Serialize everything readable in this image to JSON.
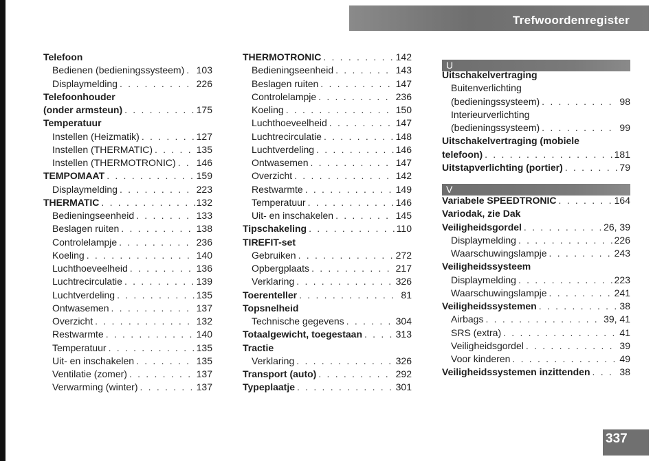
{
  "header": {
    "title": "Trefwoordenregister"
  },
  "page_number": "337",
  "columns": [
    {
      "entries": [
        {
          "text": "Telefoon",
          "bold": true
        },
        {
          "text": "Bedienen (bedieningssysteem)",
          "page": "103",
          "indent": true
        },
        {
          "text": "Displaymelding",
          "page": "226",
          "indent": true
        },
        {
          "text": "Telefoonhouder",
          "bold": true
        },
        {
          "text": "(onder armsteun)",
          "page": "175",
          "bold": true
        },
        {
          "text": "Temperatuur",
          "bold": true
        },
        {
          "text": "Instellen (Heizmatik)",
          "page": "127",
          "indent": true
        },
        {
          "text": "Instellen (THERMATIC)",
          "page": "135",
          "indent": true
        },
        {
          "text": "Instellen (THERMOTRONIC)",
          "page": "146",
          "indent": true
        },
        {
          "text": "TEMPOMAAT",
          "page": "159",
          "bold": true
        },
        {
          "text": "Displaymelding",
          "page": "223",
          "indent": true
        },
        {
          "text": "THERMATIC",
          "page": "132",
          "bold": true
        },
        {
          "text": "Bedieningseenheid",
          "page": "133",
          "indent": true
        },
        {
          "text": "Beslagen ruiten",
          "page": "138",
          "indent": true
        },
        {
          "text": "Controlelampje",
          "page": "236",
          "indent": true
        },
        {
          "text": "Koeling",
          "page": "140",
          "indent": true
        },
        {
          "text": "Luchthoeveelheid",
          "page": "136",
          "indent": true
        },
        {
          "text": "Luchtrecirculatie",
          "page": "139",
          "indent": true
        },
        {
          "text": "Luchtverdeling",
          "page": "135",
          "indent": true
        },
        {
          "text": "Ontwasemen",
          "page": "137",
          "indent": true
        },
        {
          "text": "Overzicht",
          "page": "132",
          "indent": true
        },
        {
          "text": "Restwarmte",
          "page": "140",
          "indent": true
        },
        {
          "text": "Temperatuur",
          "page": "135",
          "indent": true
        },
        {
          "text": "Uit- en inschakelen",
          "page": "135",
          "indent": true
        },
        {
          "text": "Ventilatie (zomer)",
          "page": "137",
          "indent": true
        },
        {
          "text": "Verwarming (winter)",
          "page": "137",
          "indent": true
        }
      ]
    },
    {
      "entries": [
        {
          "text": "THERMOTRONIC",
          "page": "142",
          "bold": true
        },
        {
          "text": "Bedieningseenheid",
          "page": "143",
          "indent": true
        },
        {
          "text": "Beslagen ruiten",
          "page": "147",
          "indent": true
        },
        {
          "text": "Controlelampje",
          "page": "236",
          "indent": true
        },
        {
          "text": "Koeling",
          "page": "150",
          "indent": true
        },
        {
          "text": "Luchthoeveelheid",
          "page": "147",
          "indent": true
        },
        {
          "text": "Luchtrecirculatie",
          "page": "148",
          "indent": true
        },
        {
          "text": "Luchtverdeling",
          "page": "146",
          "indent": true
        },
        {
          "text": "Ontwasemen",
          "page": "147",
          "indent": true
        },
        {
          "text": "Overzicht",
          "page": "142",
          "indent": true
        },
        {
          "text": "Restwarmte",
          "page": "149",
          "indent": true
        },
        {
          "text": "Temperatuur",
          "page": "146",
          "indent": true
        },
        {
          "text": "Uit- en inschakelen",
          "page": "145",
          "indent": true
        },
        {
          "text": "Tipschakeling",
          "page": "110",
          "bold": true
        },
        {
          "text": "TIREFIT-set",
          "bold": true
        },
        {
          "text": "Gebruiken",
          "page": "272",
          "indent": true
        },
        {
          "text": "Opbergplaats",
          "page": "217",
          "indent": true
        },
        {
          "text": "Verklaring",
          "page": "326",
          "indent": true
        },
        {
          "text": "Toerenteller",
          "page": "81",
          "bold": true
        },
        {
          "text": "Topsnelheid",
          "bold": true
        },
        {
          "text": "Technische gegevens",
          "page": "304",
          "indent": true
        },
        {
          "text": "Totaalgewicht, toegestaan",
          "page": "313",
          "bold": true
        },
        {
          "text": "Tractie",
          "bold": true
        },
        {
          "text": "Verklaring",
          "page": "326",
          "indent": true
        },
        {
          "text": "Transport (auto)",
          "page": "292",
          "bold": true
        },
        {
          "text": "Typeplaatje",
          "page": "301",
          "bold": true
        }
      ]
    },
    {
      "sections": [
        {
          "letter": "U",
          "entries": [
            {
              "text": "Uitschakelvertraging",
              "bold": true
            },
            {
              "text": "Buitenverlichting",
              "indent": true
            },
            {
              "text": "(bedieningssysteem)",
              "page": "98",
              "indent": true
            },
            {
              "text": "Interieurverlichting",
              "indent": true
            },
            {
              "text": "(bedieningssysteem)",
              "page": "99",
              "indent": true
            },
            {
              "text": "Uitschakelvertraging (mobiele",
              "bold": true
            },
            {
              "text": "telefoon)",
              "page": "181",
              "bold": true
            },
            {
              "text": "Uitstapverlichting (portier)",
              "page": "79",
              "bold": true
            }
          ]
        },
        {
          "letter": "V",
          "entries": [
            {
              "text": "Variabele SPEEDTRONIC",
              "page": "164",
              "bold": true
            },
            {
              "text": "Variodak, zie Dak",
              "bold": true
            },
            {
              "text": "Veiligheidsgordel",
              "page": "26, 39",
              "bold": true
            },
            {
              "text": "Displaymelding",
              "page": "226",
              "indent": true
            },
            {
              "text": "Waarschuwingslampje",
              "page": "243",
              "indent": true
            },
            {
              "text": "Veiligheidssysteem",
              "bold": true
            },
            {
              "text": "Displaymelding",
              "page": "223",
              "indent": true
            },
            {
              "text": "Waarschuwingslampje",
              "page": "241",
              "indent": true
            },
            {
              "text": "Veiligheidssystemen",
              "page": "38",
              "bold": true
            },
            {
              "text": "Airbags",
              "page": "39, 41",
              "indent": true
            },
            {
              "text": "SRS (extra)",
              "page": "41",
              "indent": true
            },
            {
              "text": "Veiligheidsgordel",
              "page": "39",
              "indent": true
            },
            {
              "text": "Voor kinderen",
              "page": "49",
              "indent": true
            },
            {
              "text": "Veiligheidssystemen inzittenden",
              "page": "38",
              "bold": true
            }
          ]
        }
      ]
    }
  ]
}
